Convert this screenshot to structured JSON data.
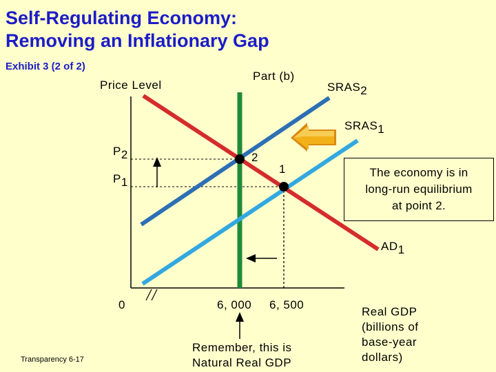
{
  "title_line1": "Self-Regulating Economy:",
  "title_line2": "Removing an Inflationary Gap",
  "exhibit": "Exhibit 3 (2 of 2)",
  "part": "Part (b)",
  "y_axis_label": "Price Level",
  "curves": {
    "sras2": {
      "name": "SRAS",
      "sub": "2",
      "color": "#2d6fb4"
    },
    "sras1": {
      "name": "SRAS",
      "sub": "1",
      "color": "#33a8e0"
    },
    "ad1": {
      "name": "AD",
      "sub": "1",
      "color": "#d42c2c"
    },
    "lras": {
      "color": "#1f8a3a"
    }
  },
  "price_labels": {
    "p2": {
      "name": "P",
      "sub": "2"
    },
    "p1": {
      "name": "P",
      "sub": "1"
    }
  },
  "points": {
    "point2": "2",
    "point1": "1"
  },
  "x_ticks": {
    "origin": "0",
    "tick1": "6, 000",
    "tick2": "6, 500"
  },
  "x_axis_label": [
    "Real GDP",
    "(billions of",
    "base-year",
    "dollars)"
  ],
  "callout": [
    "The economy is in",
    "long-run equilibrium",
    "at point 2."
  ],
  "note": [
    "Remember, this is",
    "Natural Real GDP"
  ],
  "transparency": "Transparency 6-17",
  "colors": {
    "background": "#ffffcc",
    "title": "#1c1cc8",
    "shift_arrow": "#f2b019"
  }
}
